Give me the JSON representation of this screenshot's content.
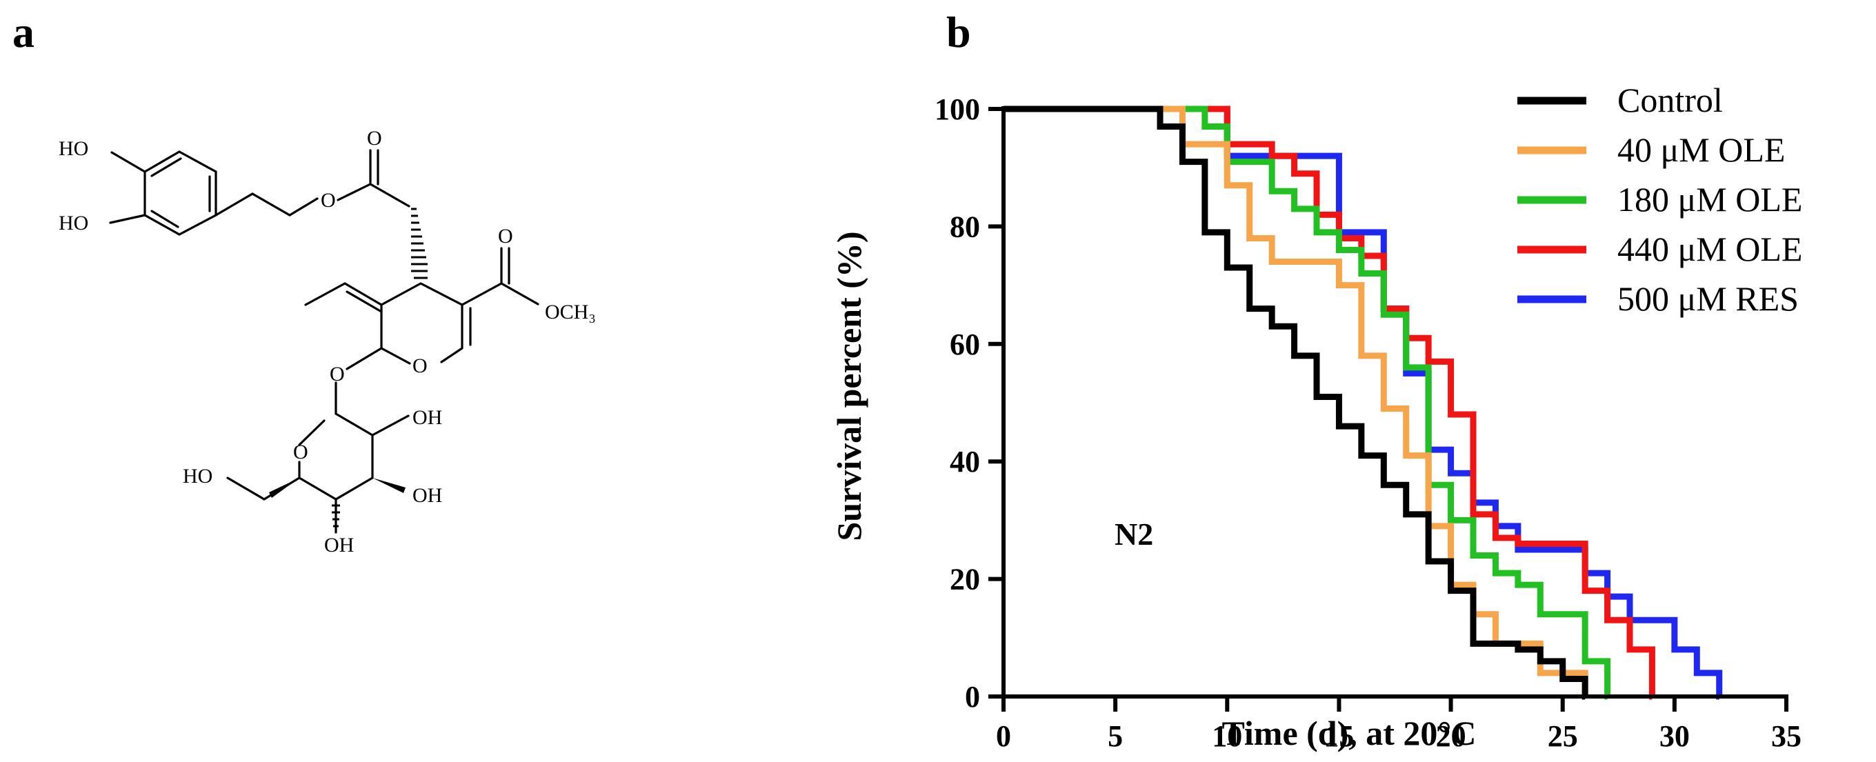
{
  "panels": {
    "a": "a",
    "b": "b"
  },
  "molecule": {
    "labels": {
      "ho1": "HO",
      "ho2": "HO",
      "och3": "OCH₃",
      "o_ring": "O",
      "o_ester1": "O",
      "o_ester2": "O",
      "o_carbonyl1": "O",
      "o_carbonyl2": "O",
      "o_glyco": "O",
      "o_sugar_ring": "O",
      "oh_1": "OH",
      "oh_2": "OH",
      "oh_3": "OH",
      "ho_3": "HO"
    }
  },
  "chart_data": {
    "type": "line",
    "step": true,
    "xlabel": "Time (d), at 20°C",
    "ylabel": "Survival percent (%)",
    "xlim": [
      0,
      35
    ],
    "ylim": [
      0,
      100
    ],
    "xticks": [
      0,
      5,
      10,
      15,
      20,
      25,
      30,
      35
    ],
    "yticks": [
      0,
      20,
      40,
      60,
      80,
      100
    ],
    "annotation": "N2",
    "legend_position": "top-right",
    "series": [
      {
        "name": "Control",
        "color": "#000000",
        "x": [
          0,
          7,
          8,
          9,
          10,
          11,
          12,
          13,
          14,
          15,
          16,
          17,
          18,
          19,
          20,
          21,
          22,
          23,
          24,
          25,
          26
        ],
        "y": [
          100,
          97,
          91,
          79,
          73,
          66,
          63,
          58,
          51,
          46,
          41,
          36,
          31,
          23,
          18,
          9,
          9,
          8,
          6,
          3,
          0
        ]
      },
      {
        "name": "40 μM OLE",
        "color": "#F7A54B",
        "x": [
          0,
          8,
          9,
          10,
          11,
          12,
          13,
          14,
          15,
          16,
          17,
          18,
          19,
          20,
          21,
          22,
          23,
          24,
          25,
          26
        ],
        "y": [
          100,
          94,
          94,
          87,
          78,
          74,
          74,
          74,
          70,
          58,
          49,
          41,
          29,
          19,
          14,
          9,
          9,
          4,
          4,
          0
        ]
      },
      {
        "name": "180 μM OLE",
        "color": "#22C022",
        "x": [
          0,
          9,
          10,
          11,
          12,
          13,
          14,
          15,
          16,
          17,
          18,
          19,
          20,
          21,
          22,
          23,
          24,
          25,
          26,
          27
        ],
        "y": [
          100,
          97,
          91,
          91,
          86,
          83,
          79,
          76,
          72,
          65,
          56,
          36,
          30,
          24,
          21,
          19,
          14,
          14,
          6,
          0
        ]
      },
      {
        "name": "440 μM OLE",
        "color": "#F01414",
        "x": [
          0,
          10,
          11,
          12,
          13,
          14,
          15,
          16,
          17,
          18,
          19,
          20,
          21,
          22,
          23,
          24,
          25,
          26,
          27,
          28,
          29
        ],
        "y": [
          100,
          94,
          94,
          92,
          89,
          82,
          78,
          75,
          66,
          61,
          57,
          48,
          31,
          27,
          26,
          26,
          26,
          18,
          13,
          8,
          0
        ]
      },
      {
        "name": "500 μM RES",
        "color": "#1E28F0",
        "x": [
          0,
          10,
          11,
          12,
          13,
          14,
          15,
          16,
          17,
          18,
          19,
          20,
          21,
          22,
          23,
          24,
          25,
          26,
          27,
          28,
          29,
          30,
          31,
          32
        ],
        "y": [
          100,
          92,
          92,
          92,
          92,
          92,
          79,
          79,
          66,
          55,
          42,
          38,
          33,
          29,
          25,
          25,
          25,
          21,
          17,
          13,
          13,
          8,
          4,
          0
        ]
      }
    ]
  }
}
